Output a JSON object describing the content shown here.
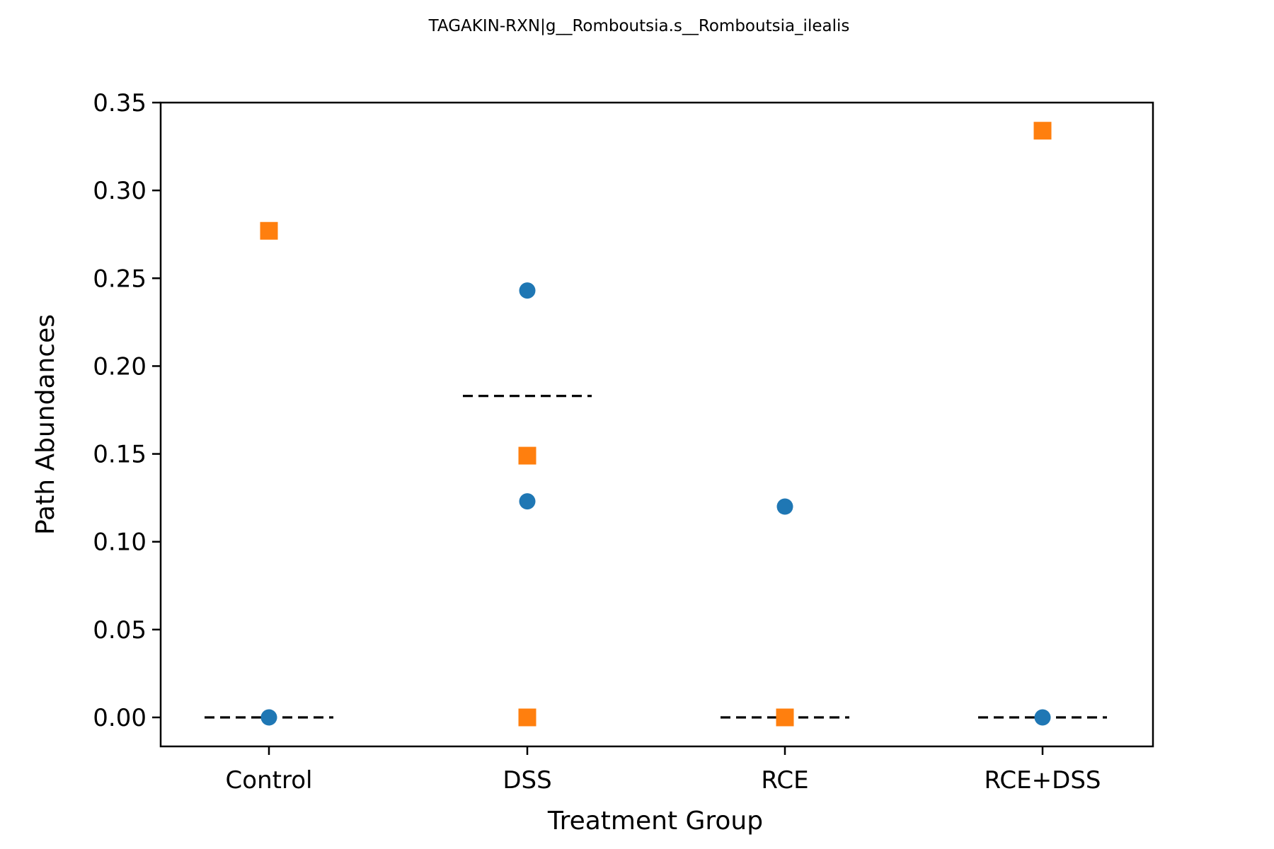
{
  "chart_data": {
    "type": "scatter",
    "title": "TAGAKIN-RXN|g__Romboutsia.s__Romboutsia_ilealis",
    "xlabel": "Treatment Group",
    "ylabel": "Path Abundances",
    "categories": [
      "Control",
      "DSS",
      "RCE",
      "RCE+DSS"
    ],
    "ylim": [
      -0.0165,
      0.35
    ],
    "yticks": [
      "0.00",
      "0.05",
      "0.10",
      "0.15",
      "0.20",
      "0.25",
      "0.30",
      "0.35"
    ],
    "ytick_values": [
      0,
      0.05,
      0.1,
      0.15,
      0.2,
      0.25,
      0.3,
      0.35
    ],
    "grid": false,
    "series": [
      {
        "marker": "circle",
        "color": "#1f77b4",
        "points": [
          {
            "category": "Control",
            "y": 0.0
          },
          {
            "category": "DSS",
            "y": 0.243
          },
          {
            "category": "DSS",
            "y": 0.123
          },
          {
            "category": "RCE",
            "y": 0.12
          },
          {
            "category": "RCE+DSS",
            "y": 0.0
          }
        ]
      },
      {
        "marker": "square",
        "color": "#ff7f0e",
        "points": [
          {
            "category": "Control",
            "y": 0.277
          },
          {
            "category": "DSS",
            "y": 0.149
          },
          {
            "category": "DSS",
            "y": 0.0
          },
          {
            "category": "RCE",
            "y": 0.0
          },
          {
            "category": "RCE+DSS",
            "y": 0.334
          }
        ]
      }
    ],
    "median_lines": [
      {
        "category": "Control",
        "y": 0.0
      },
      {
        "category": "DSS",
        "y": 0.183
      },
      {
        "category": "RCE",
        "y": 0.0
      },
      {
        "category": "RCE+DSS",
        "y": 0.0
      }
    ],
    "median_line_color": "#000000"
  }
}
